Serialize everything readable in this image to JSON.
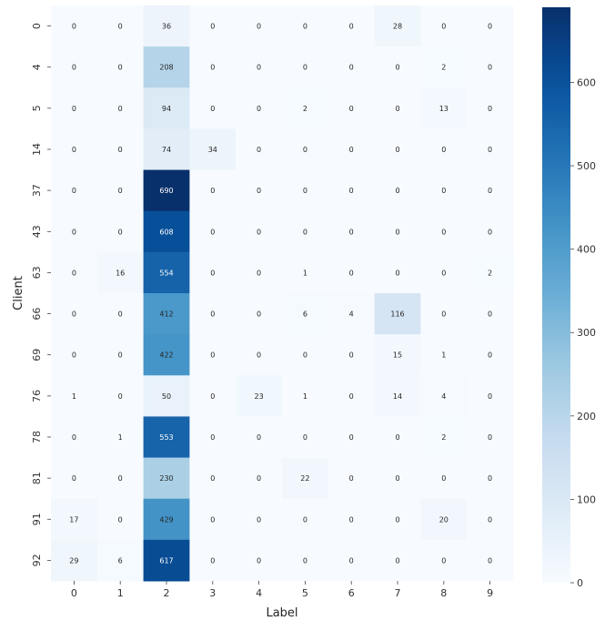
{
  "chart_data": {
    "type": "heatmap",
    "title": "",
    "xlabel": "Label",
    "ylabel": "Client",
    "x_categories": [
      "0",
      "1",
      "2",
      "3",
      "4",
      "5",
      "6",
      "7",
      "8",
      "9"
    ],
    "y_categories": [
      "0",
      "4",
      "5",
      "14",
      "37",
      "43",
      "63",
      "66",
      "69",
      "76",
      "78",
      "81",
      "91",
      "92"
    ],
    "values": [
      [
        0,
        0,
        36,
        0,
        0,
        0,
        0,
        28,
        0,
        0
      ],
      [
        0,
        0,
        208,
        0,
        0,
        0,
        0,
        0,
        2,
        0
      ],
      [
        0,
        0,
        94,
        0,
        0,
        2,
        0,
        0,
        13,
        0
      ],
      [
        0,
        0,
        74,
        34,
        0,
        0,
        0,
        0,
        0,
        0
      ],
      [
        0,
        0,
        690,
        0,
        0,
        0,
        0,
        0,
        0,
        0
      ],
      [
        0,
        0,
        608,
        0,
        0,
        0,
        0,
        0,
        0,
        0
      ],
      [
        0,
        16,
        554,
        0,
        0,
        1,
        0,
        0,
        0,
        2
      ],
      [
        0,
        0,
        412,
        0,
        0,
        6,
        4,
        116,
        0,
        0
      ],
      [
        0,
        0,
        422,
        0,
        0,
        0,
        0,
        15,
        1,
        0
      ],
      [
        1,
        0,
        50,
        0,
        23,
        1,
        0,
        14,
        4,
        0
      ],
      [
        0,
        1,
        553,
        0,
        0,
        0,
        0,
        0,
        2,
        0
      ],
      [
        0,
        0,
        230,
        0,
        0,
        22,
        0,
        0,
        0,
        0
      ],
      [
        17,
        0,
        429,
        0,
        0,
        0,
        0,
        0,
        20,
        0
      ],
      [
        29,
        6,
        617,
        0,
        0,
        0,
        0,
        0,
        0,
        0
      ]
    ],
    "colormap": "Blues",
    "vmin": 0,
    "vmax": 690,
    "colorbar_ticks": [
      0,
      100,
      200,
      300,
      400,
      500,
      600
    ],
    "annotations": true,
    "grid": false
  }
}
